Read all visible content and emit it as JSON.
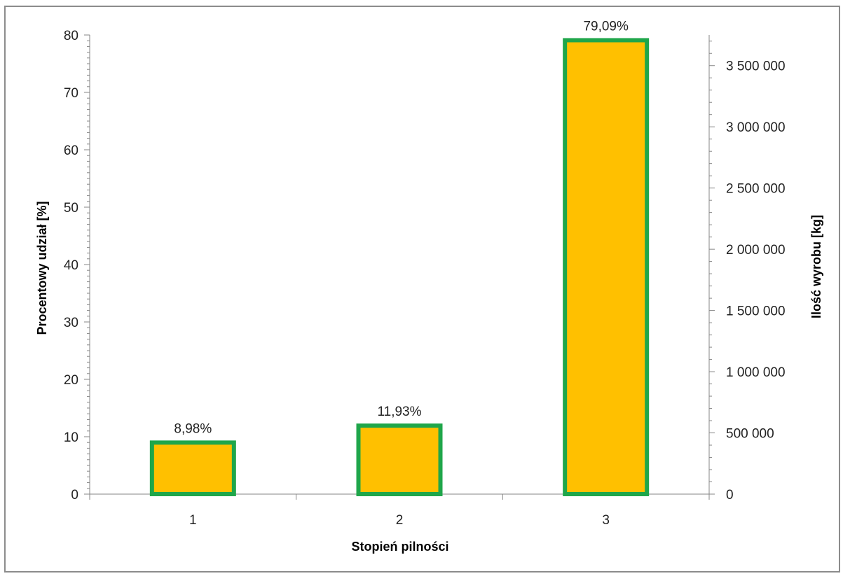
{
  "chart_data": {
    "type": "bar",
    "categories": [
      "1",
      "2",
      "3"
    ],
    "values": [
      8.98,
      11.93,
      79.09
    ],
    "data_labels": [
      "8,98%",
      "11,93%",
      "79,09%"
    ],
    "title": "",
    "xlabel": "Stopień pilności",
    "ylabel": "Procentowy udział [%]",
    "y2label": "Ilość wyrobu [kg]",
    "ylim": [
      0,
      80
    ],
    "yticks": [
      0,
      10,
      20,
      30,
      40,
      50,
      60,
      70,
      80
    ],
    "y2lim": [
      0,
      3750000
    ],
    "y2ticks": [
      0,
      500000,
      1000000,
      1500000,
      2000000,
      2500000,
      3000000,
      3500000
    ],
    "y2tick_labels": [
      "0",
      "500 000",
      "1 000 000",
      "1 500 000",
      "2 000 000",
      "2 500 000",
      "3 000 000",
      "3 500 000"
    ],
    "grid": false,
    "legend": "none",
    "colors": {
      "bar_fill": "#FFC000",
      "bar_border": "#1FA64A",
      "axis": "#868686"
    }
  }
}
